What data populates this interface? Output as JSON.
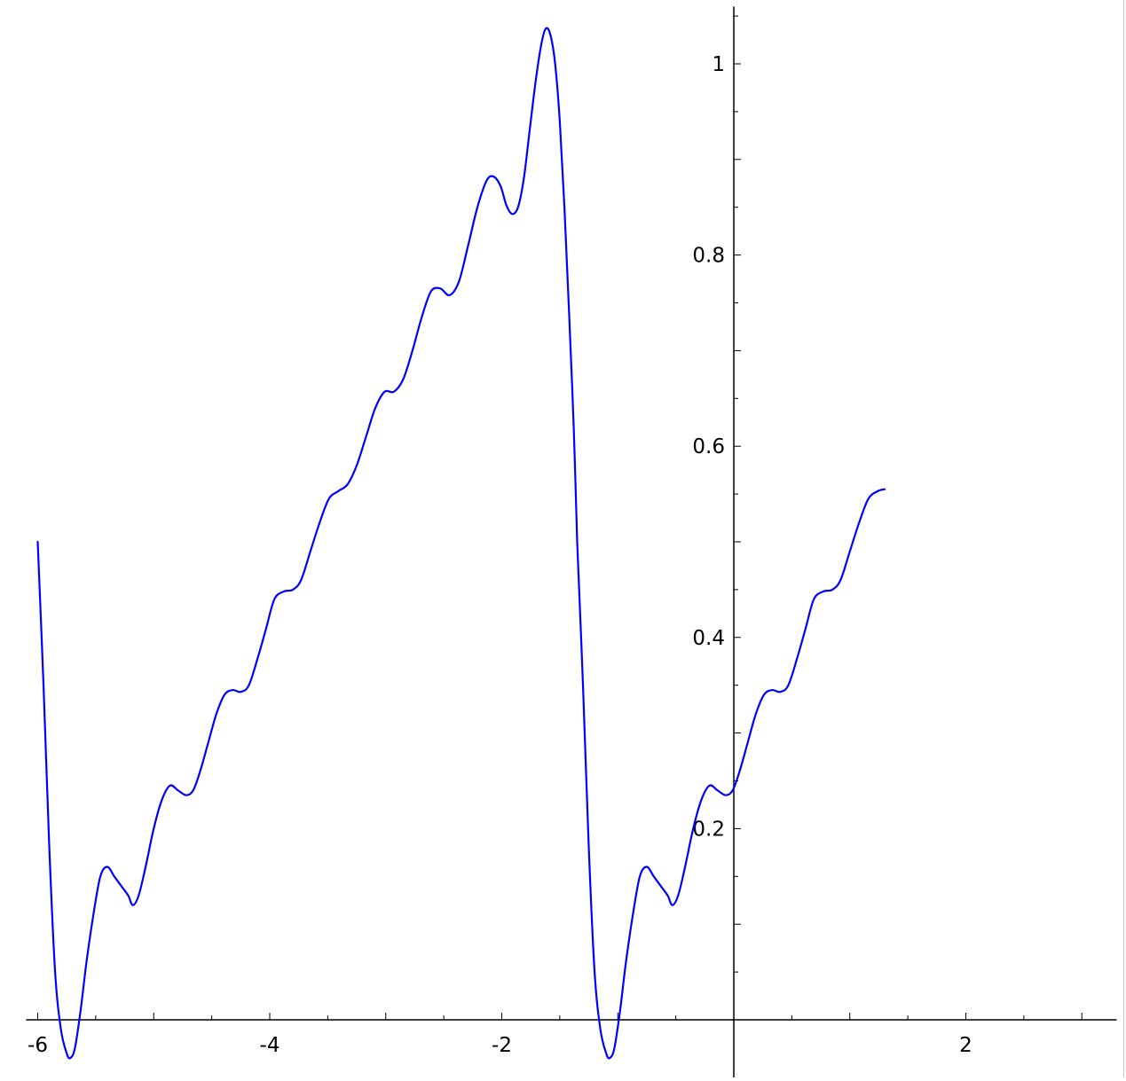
{
  "chart_data": {
    "type": "line",
    "title": "",
    "xlabel": "",
    "ylabel": "",
    "xlim": [
      -6.1,
      3.3
    ],
    "ylim": [
      -0.07,
      1.06
    ],
    "x_ticks": [
      {
        "value": -6,
        "label": "-6"
      },
      {
        "value": -4,
        "label": "-4"
      },
      {
        "value": -2,
        "label": "-2"
      },
      {
        "value": 2,
        "label": "2"
      }
    ],
    "y_ticks": [
      {
        "value": 0.2,
        "label": "0.2"
      },
      {
        "value": 0.4,
        "label": "0.4"
      },
      {
        "value": 0.6,
        "label": "0.6"
      },
      {
        "value": 0.8,
        "label": "0.8"
      },
      {
        "value": 1.0,
        "label": "1"
      }
    ],
    "x_minor_step": 0.5,
    "y_minor_step": 0.05,
    "grid": false,
    "legend": "none",
    "series": [
      {
        "color": "#0000ff",
        "points": [
          [
            -6.0,
            0.5
          ],
          [
            -5.95,
            0.35
          ],
          [
            -5.9,
            0.18
          ],
          [
            -5.85,
            0.05
          ],
          [
            -5.8,
            -0.01
          ],
          [
            -5.75,
            -0.035
          ],
          [
            -5.72,
            -0.04
          ],
          [
            -5.68,
            -0.03
          ],
          [
            -5.63,
            0.01
          ],
          [
            -5.58,
            0.06
          ],
          [
            -5.52,
            0.11
          ],
          [
            -5.46,
            0.15
          ],
          [
            -5.4,
            0.16
          ],
          [
            -5.34,
            0.15
          ],
          [
            -5.28,
            0.14
          ],
          [
            -5.22,
            0.13
          ],
          [
            -5.18,
            0.12
          ],
          [
            -5.13,
            0.13
          ],
          [
            -5.07,
            0.16
          ],
          [
            -5.0,
            0.2
          ],
          [
            -4.93,
            0.23
          ],
          [
            -4.86,
            0.245
          ],
          [
            -4.79,
            0.24
          ],
          [
            -4.72,
            0.235
          ],
          [
            -4.66,
            0.24
          ],
          [
            -4.6,
            0.26
          ],
          [
            -4.53,
            0.29
          ],
          [
            -4.46,
            0.32
          ],
          [
            -4.39,
            0.34
          ],
          [
            -4.32,
            0.345
          ],
          [
            -4.25,
            0.343
          ],
          [
            -4.18,
            0.35
          ],
          [
            -4.1,
            0.38
          ],
          [
            -4.03,
            0.41
          ],
          [
            -3.96,
            0.44
          ],
          [
            -3.88,
            0.448
          ],
          [
            -3.8,
            0.45
          ],
          [
            -3.73,
            0.46
          ],
          [
            -3.65,
            0.49
          ],
          [
            -3.57,
            0.52
          ],
          [
            -3.49,
            0.545
          ],
          [
            -3.41,
            0.553
          ],
          [
            -3.33,
            0.56
          ],
          [
            -3.25,
            0.58
          ],
          [
            -3.17,
            0.61
          ],
          [
            -3.09,
            0.64
          ],
          [
            -3.01,
            0.657
          ],
          [
            -2.93,
            0.657
          ],
          [
            -2.85,
            0.67
          ],
          [
            -2.77,
            0.7
          ],
          [
            -2.69,
            0.735
          ],
          [
            -2.61,
            0.762
          ],
          [
            -2.53,
            0.765
          ],
          [
            -2.45,
            0.758
          ],
          [
            -2.37,
            0.772
          ],
          [
            -2.29,
            0.81
          ],
          [
            -2.21,
            0.85
          ],
          [
            -2.13,
            0.878
          ],
          [
            -2.07,
            0.882
          ],
          [
            -2.01,
            0.872
          ],
          [
            -1.96,
            0.852
          ],
          [
            -1.91,
            0.843
          ],
          [
            -1.86,
            0.85
          ],
          [
            -1.81,
            0.88
          ],
          [
            -1.76,
            0.93
          ],
          [
            -1.71,
            0.98
          ],
          [
            -1.66,
            1.02
          ],
          [
            -1.62,
            1.037
          ],
          [
            -1.58,
            1.03
          ],
          [
            -1.54,
            1.0
          ],
          [
            -1.5,
            0.94
          ],
          [
            -1.46,
            0.85
          ],
          [
            -1.42,
            0.74
          ],
          [
            -1.38,
            0.62
          ],
          [
            -1.35,
            0.5
          ]
        ]
      },
      {
        "color": "#0000ff",
        "points": [
          [
            -1.35,
            0.5
          ],
          [
            -1.3,
            0.35
          ],
          [
            -1.25,
            0.18
          ],
          [
            -1.2,
            0.05
          ],
          [
            -1.15,
            -0.01
          ],
          [
            -1.1,
            -0.035
          ],
          [
            -1.07,
            -0.04
          ],
          [
            -1.03,
            -0.03
          ],
          [
            -0.98,
            0.01
          ],
          [
            -0.93,
            0.06
          ],
          [
            -0.87,
            0.11
          ],
          [
            -0.81,
            0.15
          ],
          [
            -0.75,
            0.16
          ],
          [
            -0.69,
            0.15
          ],
          [
            -0.63,
            0.14
          ],
          [
            -0.57,
            0.13
          ],
          [
            -0.53,
            0.12
          ],
          [
            -0.48,
            0.13
          ],
          [
            -0.42,
            0.16
          ],
          [
            -0.35,
            0.2
          ],
          [
            -0.28,
            0.23
          ],
          [
            -0.21,
            0.245
          ],
          [
            -0.14,
            0.24
          ],
          [
            -0.07,
            0.235
          ],
          [
            -0.01,
            0.24
          ],
          [
            0.05,
            0.26
          ],
          [
            0.12,
            0.29
          ],
          [
            0.19,
            0.32
          ],
          [
            0.26,
            0.34
          ],
          [
            0.33,
            0.345
          ],
          [
            0.4,
            0.343
          ],
          [
            0.47,
            0.35
          ],
          [
            0.55,
            0.38
          ],
          [
            0.62,
            0.41
          ],
          [
            0.69,
            0.44
          ],
          [
            0.77,
            0.448
          ],
          [
            0.85,
            0.45
          ],
          [
            0.92,
            0.46
          ],
          [
            1.0,
            0.49
          ],
          [
            1.08,
            0.52
          ],
          [
            1.16,
            0.545
          ],
          [
            1.24,
            0.553
          ],
          [
            1.3,
            0.555
          ]
        ]
      }
    ]
  }
}
